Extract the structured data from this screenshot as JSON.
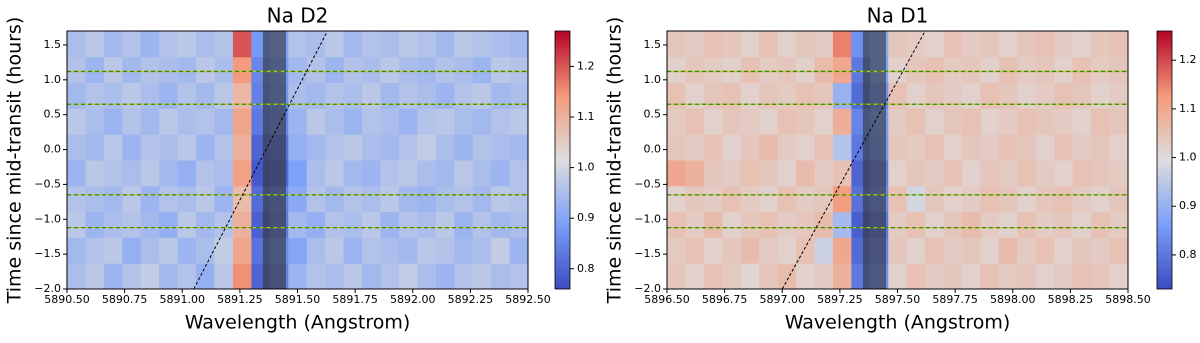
{
  "chart_data": [
    {
      "type": "heatmap",
      "title": "Na D2",
      "xlabel": "Wavelength (Angstrom)",
      "ylabel": "Time since mid-transit (hours)",
      "colormap": "coolwarm",
      "xlim": [
        5890.5,
        5892.5
      ],
      "xticks": [
        {
          "value": 5890.5,
          "label": "5890.50"
        },
        5890.75,
        {
          "value": 5891,
          "label": "5891.00"
        },
        5891.25,
        {
          "value": 5891.5,
          "label": "5891.50"
        },
        5891.75,
        {
          "value": 5892,
          "label": "5892.00"
        },
        5892.25,
        {
          "value": 5892.5,
          "label": "5892.50"
        }
      ],
      "ylim": [
        -2.0,
        1.7
      ],
      "yticks": [
        {
          "value": -2,
          "label": "−2.0"
        },
        {
          "value": -1.5,
          "label": "−1.5"
        },
        {
          "value": -1,
          "label": "−1.0"
        },
        {
          "value": -0.5,
          "label": "−0.5"
        },
        {
          "value": 0,
          "label": "0.0"
        },
        0.5,
        {
          "value": 1,
          "label": "1.0"
        },
        1.5
      ],
      "clim": [
        0.76,
        1.27
      ],
      "cticks": [
        0.8,
        0.9,
        {
          "value": 1,
          "label": "1.0"
        },
        1.1,
        1.2
      ],
      "z": [
        [
          0.95,
          0.97,
          0.93,
          0.96,
          0.98,
          0.94,
          0.96,
          0.92,
          0.97,
          1.15,
          0.8,
          0.84,
          0.93,
          0.96,
          0.95,
          0.97,
          0.94,
          0.96,
          0.98,
          0.95,
          0.93,
          0.96,
          0.97,
          0.95,
          0.96
        ],
        [
          0.94,
          0.96,
          0.97,
          0.92,
          0.95,
          0.97,
          0.93,
          0.95,
          0.98,
          1.12,
          0.82,
          0.86,
          0.9,
          0.95,
          0.97,
          0.93,
          0.96,
          0.95,
          0.94,
          0.97,
          0.96,
          0.94,
          0.95,
          0.98,
          0.93
        ],
        [
          0.97,
          0.93,
          0.95,
          0.96,
          0.94,
          0.92,
          0.97,
          0.94,
          0.96,
          1.1,
          0.79,
          0.83,
          0.94,
          0.92,
          0.96,
          0.95,
          0.97,
          0.93,
          0.96,
          0.95,
          0.97,
          0.93,
          0.96,
          0.94,
          0.95
        ],
        [
          0.96,
          0.95,
          0.94,
          0.97,
          0.93,
          0.96,
          0.95,
          0.97,
          0.93,
          1.08,
          0.81,
          0.84,
          0.91,
          0.96,
          0.94,
          0.96,
          0.95,
          0.97,
          0.94,
          0.93,
          0.95,
          0.96,
          0.94,
          0.97,
          0.96
        ],
        [
          0.93,
          0.97,
          0.96,
          0.95,
          0.97,
          0.94,
          0.92,
          0.96,
          0.95,
          1.13,
          0.78,
          0.8,
          0.89,
          0.95,
          0.97,
          0.94,
          0.93,
          0.96,
          0.97,
          0.95,
          0.94,
          0.97,
          0.95,
          0.93,
          0.96
        ],
        [
          0.95,
          0.94,
          0.97,
          0.93,
          0.96,
          0.95,
          0.97,
          0.93,
          0.96,
          1.1,
          0.8,
          0.82,
          0.92,
          0.94,
          0.96,
          0.97,
          0.95,
          0.94,
          0.96,
          0.98,
          0.95,
          0.93,
          0.96,
          0.95,
          0.94
        ],
        [
          0.97,
          0.95,
          0.93,
          0.96,
          0.94,
          0.97,
          0.95,
          0.96,
          0.94,
          1.12,
          0.83,
          0.85,
          0.93,
          0.97,
          0.95,
          0.93,
          0.96,
          0.95,
          0.93,
          0.96,
          0.97,
          0.95,
          0.94,
          0.96,
          0.97
        ],
        [
          0.94,
          0.96,
          0.95,
          0.97,
          0.95,
          0.93,
          0.96,
          0.94,
          0.97,
          1.09,
          0.84,
          0.87,
          0.95,
          0.94,
          0.96,
          0.95,
          0.97,
          0.94,
          0.96,
          0.95,
          0.93,
          0.96,
          0.97,
          0.94,
          0.95
        ],
        [
          0.96,
          0.93,
          0.97,
          0.94,
          0.96,
          0.95,
          0.94,
          0.97,
          0.95,
          1.14,
          0.85,
          0.88,
          0.94,
          0.96,
          0.93,
          0.96,
          0.95,
          0.97,
          0.95,
          0.94,
          0.96,
          0.95,
          0.93,
          0.97,
          0.96
        ],
        [
          0.95,
          0.97,
          0.94,
          0.96,
          0.93,
          0.96,
          0.97,
          0.95,
          0.96,
          1.2,
          0.88,
          0.9,
          0.96,
          0.95,
          0.97,
          0.94,
          0.96,
          0.95,
          0.97,
          0.96,
          0.94,
          0.97,
          0.96,
          0.95,
          0.94
        ]
      ],
      "band": [
        5891.35,
        5891.45
      ],
      "hlines": [
        1.12,
        0.65,
        -0.65,
        -1.12
      ],
      "line_x": [
        5891.05,
        5891.63
      ],
      "line_y": [
        -2.0,
        1.7
      ]
    },
    {
      "type": "heatmap",
      "title": "Na D1",
      "xlabel": "Wavelength (Angstrom)",
      "ylabel": "Time since mid-transit (hours)",
      "colormap": "coolwarm",
      "xlim": [
        5896.5,
        5898.5
      ],
      "xticks": [
        {
          "value": 5896.5,
          "label": "5896.50"
        },
        5896.75,
        {
          "value": 5897,
          "label": "5897.00"
        },
        5897.25,
        {
          "value": 5897.5,
          "label": "5897.50"
        },
        5897.75,
        {
          "value": 5898,
          "label": "5898.00"
        },
        5898.25,
        {
          "value": 5898.5,
          "label": "5898.50"
        }
      ],
      "ylim": [
        -2.0,
        1.7
      ],
      "yticks": [
        {
          "value": -2,
          "label": "−2.0"
        },
        {
          "value": -1.5,
          "label": "−1.5"
        },
        {
          "value": -1,
          "label": "−1.0"
        },
        {
          "value": -0.5,
          "label": "−0.5"
        },
        {
          "value": 0,
          "label": "0.0"
        },
        0.5,
        {
          "value": 1,
          "label": "1.0"
        },
        1.5
      ],
      "clim": [
        0.73,
        1.26
      ],
      "cticks": [
        0.8,
        0.9,
        {
          "value": 1,
          "label": "1.0"
        },
        1.1,
        1.2
      ],
      "z": [
        [
          1.04,
          1.02,
          1.05,
          1.03,
          1.01,
          1.04,
          1.06,
          1.02,
          1.03,
          1.08,
          0.8,
          0.84,
          1.02,
          1.05,
          1.03,
          1.04,
          1.02,
          1.05,
          1.03,
          1.04,
          1.02,
          1.03,
          1.05,
          1.04,
          1.02
        ],
        [
          1.03,
          1.05,
          1.02,
          1.04,
          1.06,
          1.03,
          1.02,
          1.05,
          0.97,
          1.1,
          0.78,
          0.82,
          1.04,
          1.02,
          1.05,
          1.03,
          1.04,
          1.02,
          1.06,
          1.03,
          1.05,
          1.02,
          1.04,
          1.03,
          1.05
        ],
        [
          1.05,
          1.03,
          1.06,
          1.02,
          1.04,
          1.05,
          1.03,
          1.04,
          1.06,
          0.92,
          0.76,
          0.8,
          1.03,
          1.05,
          1.02,
          1.04,
          1.06,
          1.03,
          1.02,
          1.05,
          1.03,
          1.04,
          1.02,
          1.05,
          1.03
        ],
        [
          1.02,
          1.04,
          1.03,
          1.05,
          1.03,
          1.02,
          1.05,
          1.03,
          1.04,
          1.12,
          0.79,
          0.83,
          1.05,
          0.98,
          1.04,
          1.02,
          1.03,
          1.05,
          1.04,
          1.02,
          1.04,
          1.05,
          1.03,
          1.02,
          1.04
        ],
        [
          1.1,
          1.08,
          1.04,
          1.03,
          1.05,
          1.04,
          1.02,
          1.06,
          1.03,
          1.05,
          0.77,
          0.81,
          1.02,
          1.04,
          1.03,
          1.05,
          1.02,
          1.04,
          1.03,
          1.05,
          1.03,
          1.02,
          1.05,
          1.04,
          1.03
        ],
        [
          1.04,
          1.03,
          1.05,
          1.02,
          1.04,
          1.06,
          1.03,
          1.02,
          1.05,
          0.94,
          0.8,
          0.85,
          1.04,
          1.03,
          1.05,
          1.02,
          1.04,
          1.03,
          1.05,
          1.04,
          1.02,
          1.05,
          1.03,
          1.04,
          1.02
        ],
        [
          1.03,
          1.05,
          1.02,
          1.04,
          1.03,
          1.02,
          1.05,
          1.04,
          1.02,
          1.09,
          0.82,
          0.86,
          1.03,
          1.05,
          1.02,
          1.04,
          1.05,
          1.02,
          1.03,
          1.05,
          1.04,
          1.03,
          1.02,
          1.05,
          1.04
        ],
        [
          1.05,
          1.02,
          1.04,
          1.05,
          1.02,
          1.04,
          1.03,
          1.05,
          1.04,
          0.9,
          0.78,
          0.84,
          1.05,
          1.02,
          1.04,
          1.03,
          1.02,
          1.05,
          1.04,
          1.02,
          1.03,
          1.05,
          1.04,
          1.02,
          1.03
        ],
        [
          1.02,
          1.04,
          1.03,
          1.02,
          1.05,
          1.03,
          1.04,
          1.02,
          1.06,
          1.1,
          0.8,
          0.87,
          1.02,
          1.04,
          1.05,
          1.03,
          1.04,
          1.02,
          1.05,
          1.03,
          1.04,
          1.02,
          1.05,
          1.03,
          1.04
        ],
        [
          1.04,
          1.03,
          1.05,
          1.04,
          1.02,
          1.05,
          1.02,
          1.04,
          1.03,
          1.15,
          0.84,
          0.88,
          1.04,
          1.03,
          1.02,
          1.05,
          1.03,
          1.04,
          1.02,
          1.04,
          1.05,
          1.03,
          1.02,
          1.04,
          1.05
        ]
      ],
      "band": [
        5897.35,
        5897.45
      ],
      "hlines": [
        1.12,
        0.65,
        -0.65,
        -1.12
      ],
      "line_x": [
        5897.0,
        5897.62
      ],
      "line_y": [
        -2.0,
        1.7
      ]
    }
  ]
}
